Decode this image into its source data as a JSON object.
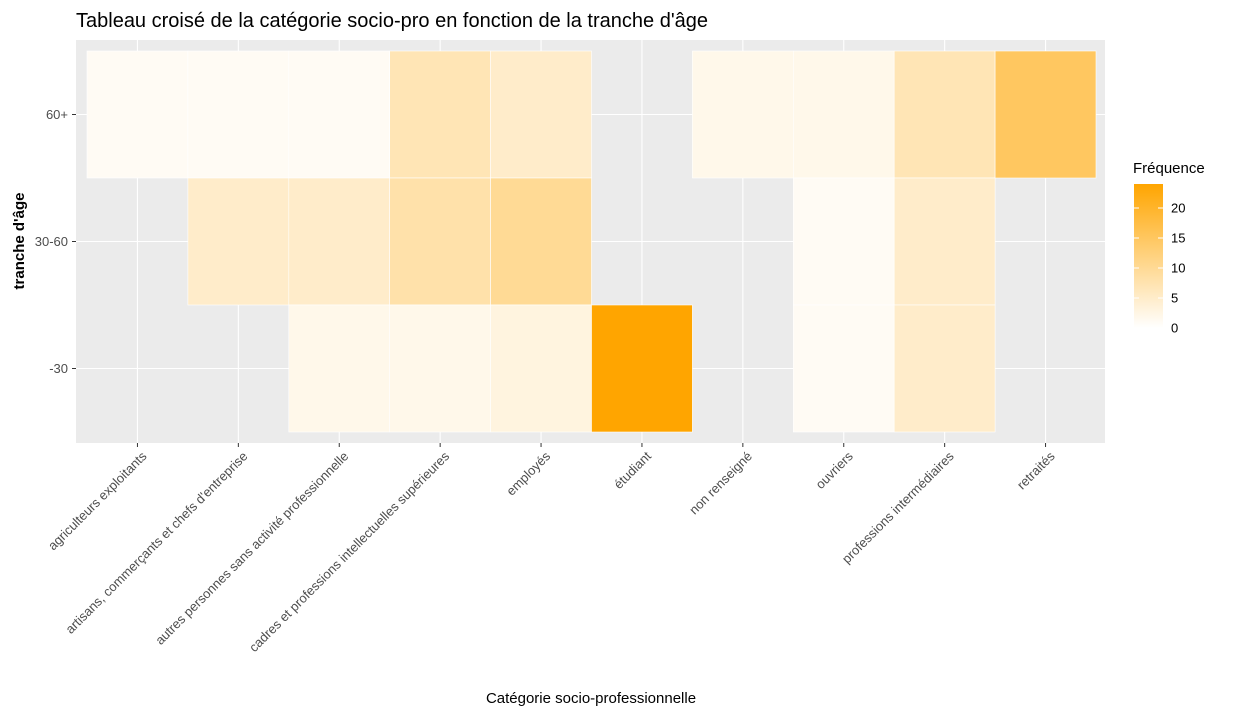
{
  "chart_data": {
    "type": "heatmap",
    "title": "Tableau croisé de la catégorie socio-pro en fonction de la tranche d'âge",
    "xlabel": "Catégorie socio-professionnelle",
    "ylabel": "tranche d'âge",
    "x_categories": [
      "agriculteurs exploitants",
      "artisans, commerçants et chefs d'entreprise",
      "autres personnes sans activité professionnelle",
      "cadres et professions intellectuelles supérieures",
      "employés",
      "étudiant",
      "non renseigné",
      "ouvriers",
      "professions intermédiaires",
      "retraités"
    ],
    "y_categories": [
      "-30",
      "30-60",
      "60+"
    ],
    "cells": [
      {
        "x": "agriculteurs exploitants",
        "y": "60+",
        "value": 1
      },
      {
        "x": "artisans, commerçants et chefs d'entreprise",
        "y": "60+",
        "value": 1
      },
      {
        "x": "artisans, commerçants et chefs d'entreprise",
        "y": "30-60",
        "value": 5
      },
      {
        "x": "autres personnes sans activité professionnelle",
        "y": "60+",
        "value": 1
      },
      {
        "x": "autres personnes sans activité professionnelle",
        "y": "30-60",
        "value": 5
      },
      {
        "x": "autres personnes sans activité professionnelle",
        "y": "-30",
        "value": 2
      },
      {
        "x": "cadres et professions intellectuelles supérieures",
        "y": "60+",
        "value": 7
      },
      {
        "x": "cadres et professions intellectuelles supérieures",
        "y": "30-60",
        "value": 8
      },
      {
        "x": "cadres et professions intellectuelles supérieures",
        "y": "-30",
        "value": 2
      },
      {
        "x": "employés",
        "y": "60+",
        "value": 5
      },
      {
        "x": "employés",
        "y": "30-60",
        "value": 10
      },
      {
        "x": "employés",
        "y": "-30",
        "value": 3
      },
      {
        "x": "étudiant",
        "y": "-30",
        "value": 24
      },
      {
        "x": "non renseigné",
        "y": "60+",
        "value": 2
      },
      {
        "x": "ouvriers",
        "y": "60+",
        "value": 2
      },
      {
        "x": "ouvriers",
        "y": "30-60",
        "value": 1
      },
      {
        "x": "ouvriers",
        "y": "-30",
        "value": 1
      },
      {
        "x": "professions intermédiaires",
        "y": "60+",
        "value": 7
      },
      {
        "x": "professions intermédiaires",
        "y": "30-60",
        "value": 5
      },
      {
        "x": "professions intermédiaires",
        "y": "-30",
        "value": 5
      },
      {
        "x": "retraités",
        "y": "60+",
        "value": 15
      }
    ],
    "legend": {
      "title": "Fréquence",
      "ticks": [
        0,
        5,
        10,
        15,
        20
      ],
      "min": 0,
      "max": 24,
      "placement": "right"
    },
    "colors": {
      "low": "#ffffff",
      "high": "#ffa500",
      "panel_background": "#ebebeb",
      "grid": "#ffffff"
    }
  }
}
